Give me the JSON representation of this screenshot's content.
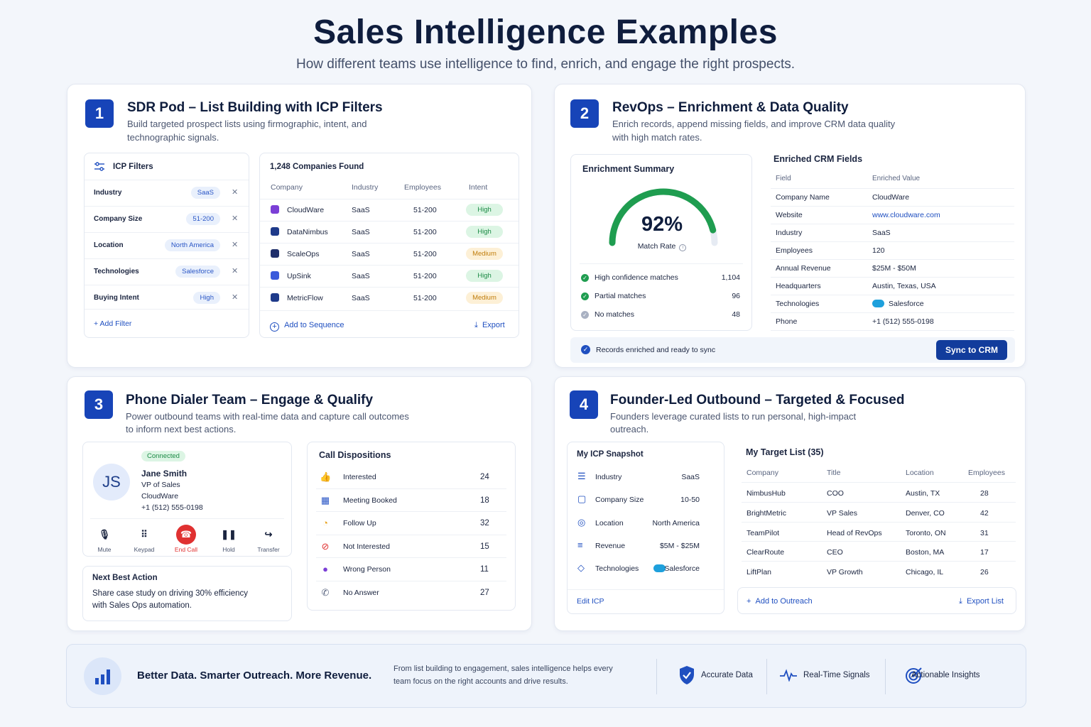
{
  "page": {
    "title": "Sales Intelligence Examples",
    "subtitle": "How different teams use intelligence to find, enrich, and engage the right prospects."
  },
  "card1": {
    "number": "1",
    "title": "SDR Pod – List Building with ICP Filters",
    "desc_line1": "Build targeted prospect lists using firmographic, intent, and",
    "desc_line2": "technographic signals.",
    "filters": {
      "title": "ICP Filters",
      "items": [
        {
          "label": "Industry",
          "value": "SaaS"
        },
        {
          "label": "Company Size",
          "value": "51-200"
        },
        {
          "label": "Location",
          "value": "North America"
        },
        {
          "label": "Technologies",
          "value": "Salesforce"
        },
        {
          "label": "Buying Intent",
          "value": "High"
        }
      ],
      "add_filter": "Add Filter"
    },
    "results": {
      "title": "1,248 Companies Found",
      "headers": [
        "Company",
        "Industry",
        "Employees",
        "Intent"
      ],
      "rows": [
        {
          "company": "CloudWare",
          "industry": "SaaS",
          "employees": "51-200",
          "intent": "High",
          "logo_color": "#7b3fd6"
        },
        {
          "company": "DataNimbus",
          "industry": "SaaS",
          "employees": "51-200",
          "intent": "High",
          "logo_color": "#1e3a8a"
        },
        {
          "company": "ScaleOps",
          "industry": "SaaS",
          "employees": "51-200",
          "intent": "Medium",
          "logo_color": "#1f2f6b"
        },
        {
          "company": "UpSink",
          "industry": "SaaS",
          "employees": "51-200",
          "intent": "High",
          "logo_color": "#3b5bdb"
        },
        {
          "company": "MetricFlow",
          "industry": "SaaS",
          "employees": "51-200",
          "intent": "Medium",
          "logo_color": "#1e3a8a"
        }
      ],
      "add_to_sequence": "Add to Sequence",
      "export": "Export"
    }
  },
  "card2": {
    "number": "2",
    "title": "RevOps – Enrichment & Data Quality",
    "desc_line1": "Enrich records, append missing fields, and improve CRM data quality",
    "desc_line2": "with high match rates.",
    "summary": {
      "title": "Enrichment Summary",
      "match_rate": "92%",
      "match_rate_fraction": 0.92,
      "match_label": "Match Rate",
      "stats": [
        {
          "label": "High confidence matches",
          "value": "1,104",
          "color": "#1f9d50"
        },
        {
          "label": "Partial matches",
          "value": "96",
          "color": "#1f9d50"
        },
        {
          "label": "No matches",
          "value": "48",
          "color": "#a9b1c2"
        }
      ]
    },
    "fields": {
      "title": "Enriched CRM Fields",
      "header_field": "Field",
      "header_value": "Enriched Value",
      "rows": [
        {
          "field": "Company Name",
          "value": "CloudWare"
        },
        {
          "field": "Website",
          "value": "www.cloudware.com"
        },
        {
          "field": "Industry",
          "value": "SaaS"
        },
        {
          "field": "Employees",
          "value": "120"
        },
        {
          "field": "Annual Revenue",
          "value": "$25M - $50M"
        },
        {
          "field": "Headquarters",
          "value": "Austin, Texas, USA"
        },
        {
          "field": "Technologies",
          "value": "Salesforce"
        },
        {
          "field": "Phone",
          "value": "+1 (512) 555-0198"
        }
      ]
    },
    "sync_status": "Records enriched and ready to sync",
    "sync_button": "Sync to CRM"
  },
  "card3": {
    "number": "3",
    "title": "Phone Dialer Team – Engage & Qualify",
    "desc_line1": "Power outbound teams with real-time data and capture call outcomes",
    "desc_line2": "to inform next best actions.",
    "call": {
      "status": "Connected",
      "initials": "JS",
      "name": "Jane Smith",
      "role": "VP of Sales",
      "company": "CloudWare",
      "phone": "+1 (512) 555-0198",
      "controls": [
        "Mute",
        "Keypad",
        "End Call",
        "Hold",
        "Transfer"
      ]
    },
    "next_action": {
      "title": "Next Best Action",
      "line1": "Share case study on driving 30% efficiency",
      "line2": "with Sales Ops automation."
    },
    "dispositions": {
      "title": "Call Dispositions",
      "items": [
        {
          "label": "Interested",
          "value": "24",
          "icon": "thumbs-up-icon",
          "color": "#1f9d50"
        },
        {
          "label": "Meeting Booked",
          "value": "18",
          "icon": "calendar-icon",
          "color": "#2a56c6"
        },
        {
          "label": "Follow Up",
          "value": "32",
          "icon": "clock-icon",
          "color": "#e8a21a"
        },
        {
          "label": "Not Interested",
          "value": "15",
          "icon": "block-icon",
          "color": "#e03131"
        },
        {
          "label": "Wrong Person",
          "value": "11",
          "icon": "person-icon",
          "color": "#7b3fd6"
        },
        {
          "label": "No Answer",
          "value": "27",
          "icon": "phone-icon",
          "color": "#5a6580"
        }
      ]
    }
  },
  "card4": {
    "number": "4",
    "title": "Founder-Led Outbound – Targeted & Focused",
    "desc_line1": "Founders leverage curated lists to run personal, high-impact",
    "desc_line2": "outreach.",
    "snapshot": {
      "title": "My ICP Snapshot",
      "items": [
        {
          "label": "Industry",
          "value": "SaaS"
        },
        {
          "label": "Company Size",
          "value": "10-50"
        },
        {
          "label": "Location",
          "value": "North America"
        },
        {
          "label": "Revenue",
          "value": "$5M - $25M"
        },
        {
          "label": "Technologies",
          "value": "Salesforce"
        }
      ],
      "edit": "Edit ICP"
    },
    "target": {
      "title": "My Target List (35)",
      "headers": [
        "Company",
        "Title",
        "Location",
        "Employees"
      ],
      "rows": [
        {
          "company": "NimbusHub",
          "title": "COO",
          "location": "Austin, TX",
          "employees": "28"
        },
        {
          "company": "BrightMetric",
          "title": "VP Sales",
          "location": "Denver, CO",
          "employees": "42"
        },
        {
          "company": "TeamPilot",
          "title": "Head of RevOps",
          "location": "Toronto, ON",
          "employees": "31"
        },
        {
          "company": "ClearRoute",
          "title": "CEO",
          "location": "Boston, MA",
          "employees": "17"
        },
        {
          "company": "LiftPlan",
          "title": "VP Growth",
          "location": "Chicago, IL",
          "employees": "26"
        }
      ],
      "add_to_outreach": "Add to Outreach",
      "export_list": "Export List"
    }
  },
  "footer": {
    "headline": "Better Data. Smarter Outreach. More Revenue.",
    "desc_line1": "From list building to engagement, sales intelligence helps every",
    "desc_line2": "team focus on the right accounts and drive results.",
    "features": [
      "Accurate Data",
      "Real-Time Signals",
      "Actionable Insights"
    ]
  }
}
